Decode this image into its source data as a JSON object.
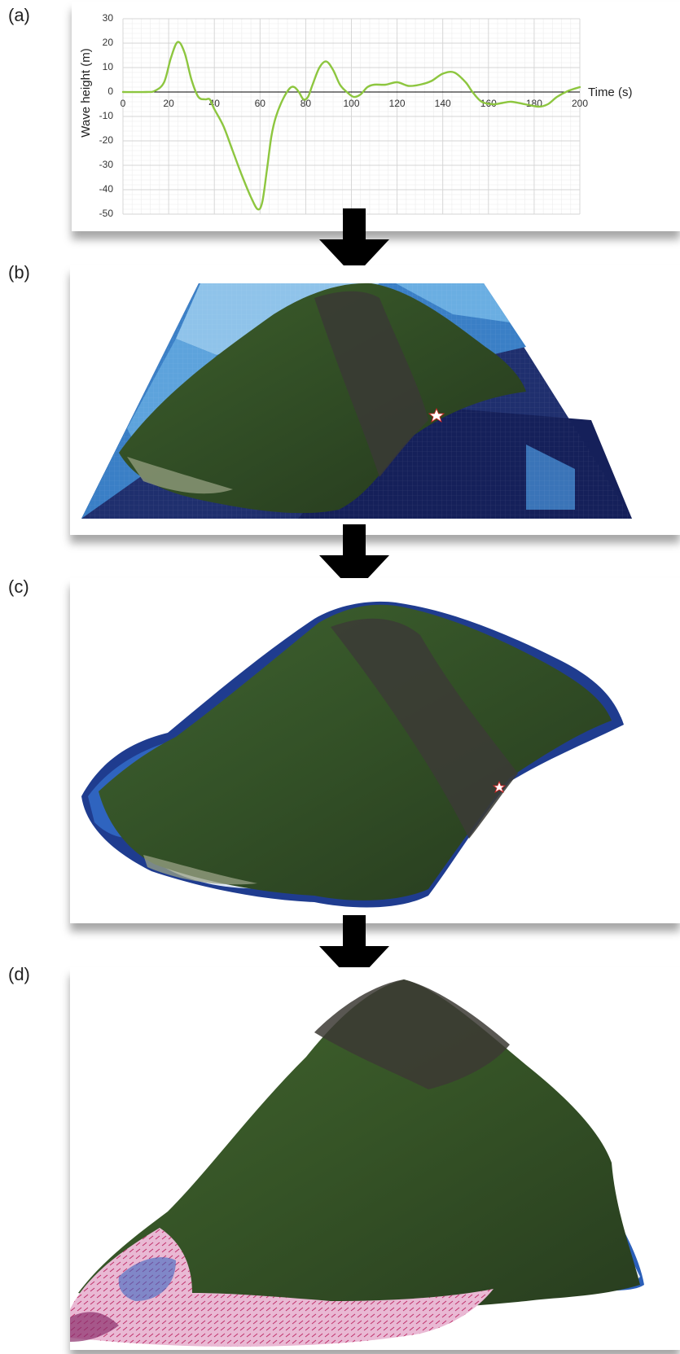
{
  "panels": {
    "a": "(a)",
    "b": "(b)",
    "c": "(c)",
    "d": "(d)"
  },
  "chart_data": {
    "type": "line",
    "title": "",
    "xlabel": "Time (s)",
    "ylabel": "Wave height (m)",
    "xlim": [
      0,
      200
    ],
    "ylim": [
      -50,
      30
    ],
    "xticks": [
      0,
      20,
      40,
      60,
      80,
      100,
      120,
      140,
      160,
      180,
      200
    ],
    "yticks": [
      30,
      20,
      10,
      0,
      -10,
      -20,
      -30,
      -40,
      -50
    ],
    "grid": true,
    "color": "#8dc63f",
    "series": [
      {
        "x": [
          0,
          10,
          14,
          18,
          21,
          24,
          27,
          30,
          33,
          36,
          38,
          40,
          44,
          48,
          52,
          56,
          59,
          61,
          63,
          65,
          67,
          70,
          73,
          75,
          77,
          79,
          81,
          83,
          86,
          89,
          92,
          95,
          98,
          101,
          104,
          107,
          110,
          115,
          120,
          125,
          130,
          135,
          140,
          145,
          150,
          153,
          157,
          162,
          166,
          170,
          176,
          182,
          186,
          190,
          195,
          200
        ],
        "y": [
          0,
          0,
          0.5,
          4,
          14,
          20.5,
          16,
          5,
          -2,
          -3,
          -3,
          -7,
          -14,
          -24,
          -34,
          -43,
          -48,
          -45,
          -32,
          -18,
          -10,
          -3,
          1.5,
          2,
          0,
          -3,
          -2,
          3,
          10,
          12.5,
          9,
          3,
          0,
          -2,
          -1,
          2,
          3,
          3,
          4,
          2.5,
          3,
          4.5,
          7.5,
          8,
          4,
          0,
          -4,
          -5,
          -4.5,
          -4,
          -5,
          -6,
          -5,
          -2,
          0.5,
          2
        ]
      }
    ]
  },
  "images": {
    "b": "3D bathymetric grid with volcano",
    "c": "Volcano with coastal grid",
    "d": "Volcano with inundation vectors"
  }
}
